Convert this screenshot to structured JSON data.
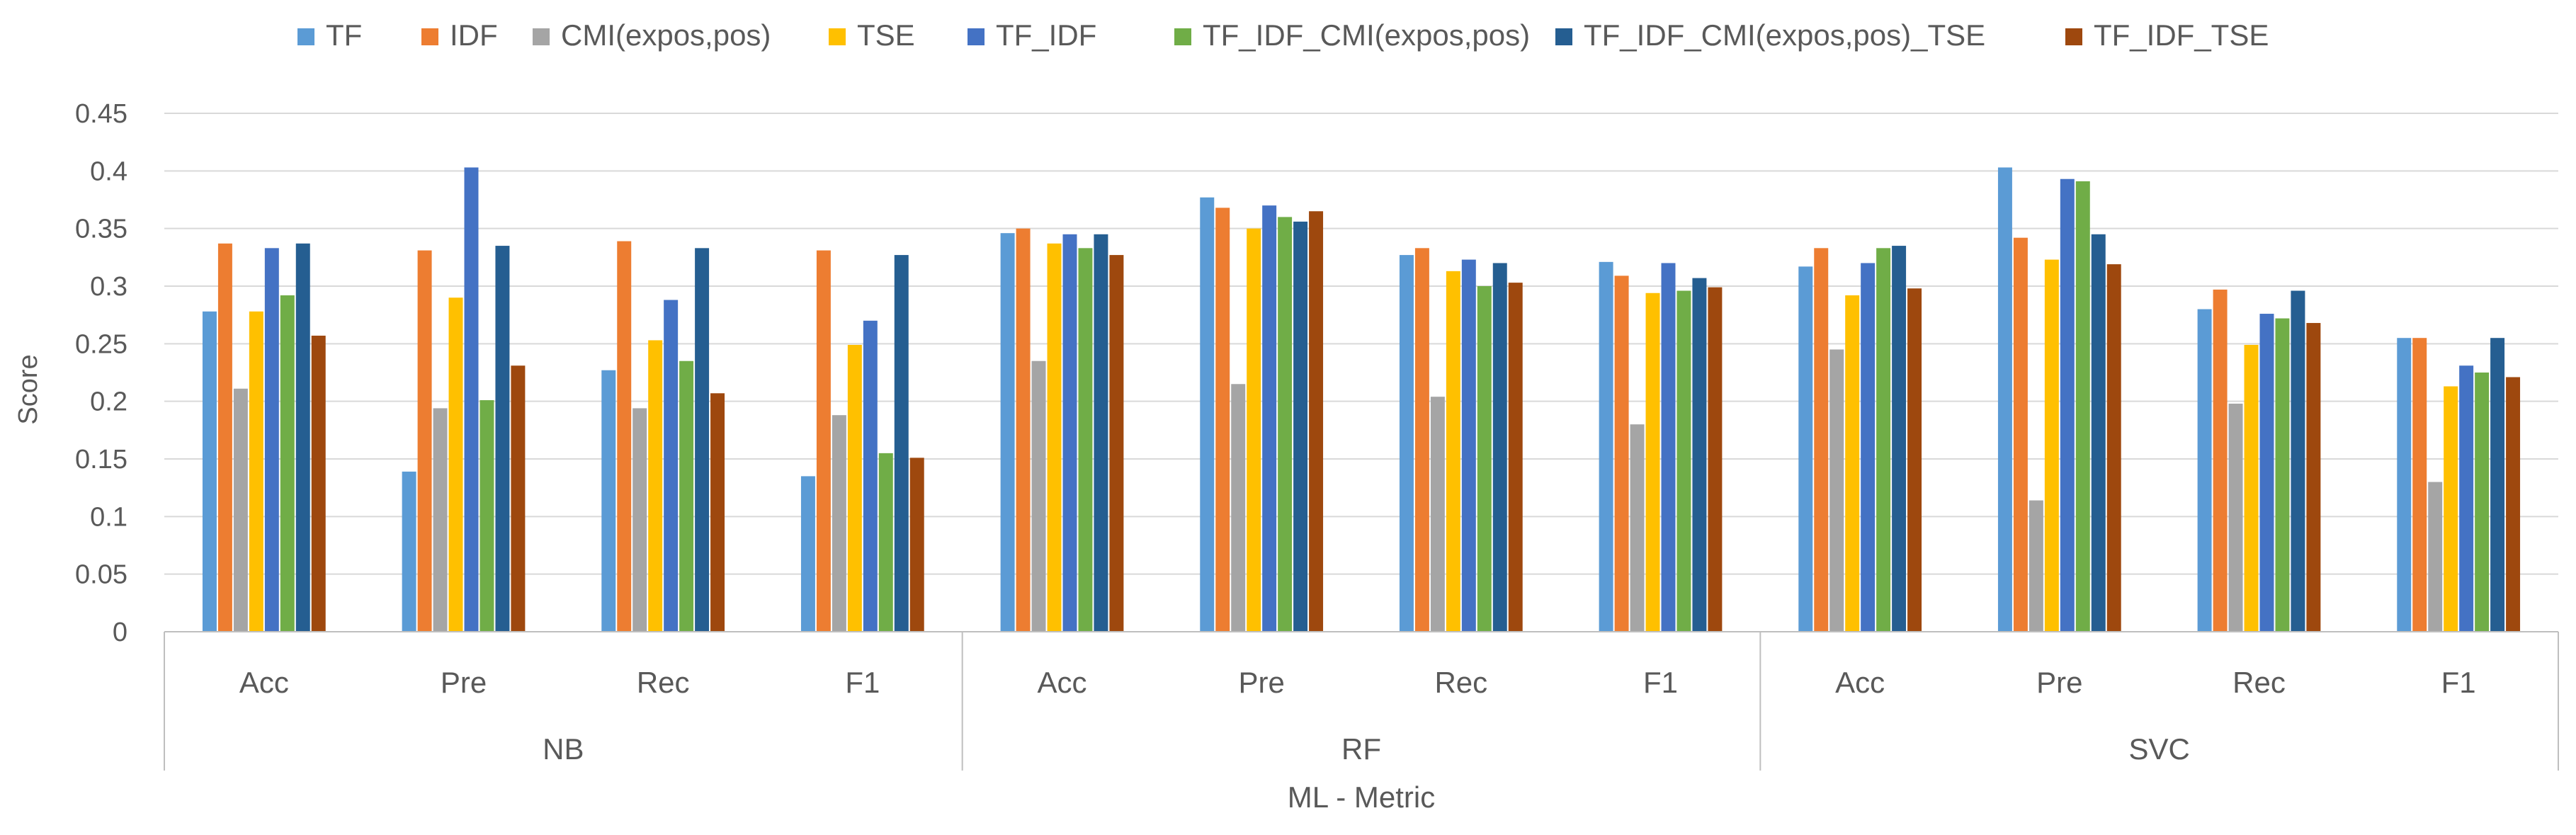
{
  "chart_data": {
    "type": "bar",
    "title": "",
    "xlabel": "ML - Metric",
    "ylabel": "Score",
    "ylim": [
      0,
      0.45
    ],
    "yticks": [
      0,
      0.05,
      0.1,
      0.15,
      0.2,
      0.25,
      0.3,
      0.35,
      0.4,
      0.45
    ],
    "ytick_labels": [
      "0",
      "0.05",
      "0.1",
      "0.15",
      "0.2",
      "0.25",
      "0.3",
      "0.35",
      "0.4",
      "0.45"
    ],
    "grid": true,
    "legend_position": "top",
    "groups": [
      {
        "label": "NB",
        "metrics": [
          "Acc",
          "Pre",
          "Rec",
          "F1"
        ]
      },
      {
        "label": "RF",
        "metrics": [
          "Acc",
          "Pre",
          "Rec",
          "F1"
        ]
      },
      {
        "label": "SVC",
        "metrics": [
          "Acc",
          "Pre",
          "Rec",
          "F1"
        ]
      }
    ],
    "categories": [
      "NB Acc",
      "NB Pre",
      "NB Rec",
      "NB F1",
      "RF Acc",
      "RF Pre",
      "RF Rec",
      "RF F1",
      "SVC Acc",
      "SVC Pre",
      "SVC Rec",
      "SVC F1"
    ],
    "series": [
      {
        "name": "TF",
        "color": "#5B9BD5",
        "values": [
          0.278,
          0.139,
          0.227,
          0.135,
          0.346,
          0.377,
          0.327,
          0.321,
          0.317,
          0.403,
          0.28,
          0.255
        ]
      },
      {
        "name": "IDF",
        "color": "#ED7D31",
        "values": [
          0.337,
          0.331,
          0.339,
          0.331,
          0.35,
          0.368,
          0.333,
          0.309,
          0.333,
          0.342,
          0.297,
          0.255
        ]
      },
      {
        "name": "CMI(expos,pos)",
        "color": "#A5A5A5",
        "values": [
          0.211,
          0.194,
          0.194,
          0.188,
          0.235,
          0.215,
          0.204,
          0.18,
          0.245,
          0.114,
          0.198,
          0.13
        ]
      },
      {
        "name": "TSE",
        "color": "#FFC000",
        "values": [
          0.278,
          0.29,
          0.253,
          0.249,
          0.337,
          0.35,
          0.313,
          0.294,
          0.292,
          0.323,
          0.249,
          0.213
        ]
      },
      {
        "name": "TF_IDF",
        "color": "#4472C4",
        "values": [
          0.333,
          0.403,
          0.288,
          0.27,
          0.345,
          0.37,
          0.323,
          0.32,
          0.32,
          0.393,
          0.276,
          0.231
        ]
      },
      {
        "name": "TF_IDF_CMI(expos,pos)",
        "color": "#70AD47",
        "values": [
          0.292,
          0.201,
          0.235,
          0.155,
          0.333,
          0.36,
          0.3,
          0.296,
          0.333,
          0.391,
          0.272,
          0.225
        ]
      },
      {
        "name": "TF_IDF_CMI(expos,pos)_TSE",
        "color": "#255E91",
        "values": [
          0.337,
          0.335,
          0.333,
          0.327,
          0.345,
          0.356,
          0.32,
          0.307,
          0.335,
          0.345,
          0.296,
          0.255
        ]
      },
      {
        "name": "TF_IDF_TSE",
        "color": "#9E480E",
        "values": [
          0.257,
          0.231,
          0.207,
          0.151,
          0.327,
          0.365,
          0.303,
          0.299,
          0.298,
          0.319,
          0.268,
          0.221
        ]
      }
    ]
  }
}
